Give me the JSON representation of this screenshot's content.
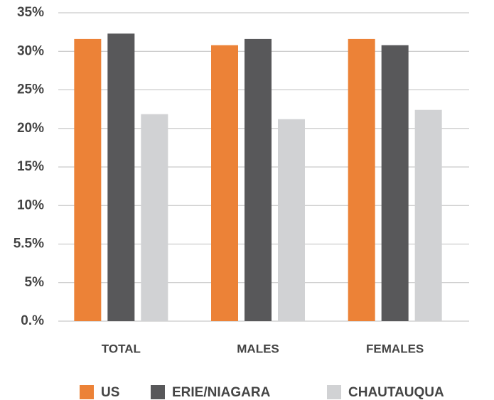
{
  "chart_data": {
    "type": "bar",
    "categories": [
      "TOTAL",
      "MALES",
      "FEMALES"
    ],
    "series": [
      {
        "name": "US",
        "color": "#ec8237",
        "values": [
          31.6,
          30.8,
          31.6
        ]
      },
      {
        "name": "ERIE/NIAGARA",
        "color": "#58585a",
        "values": [
          32.3,
          31.6,
          30.8
        ]
      },
      {
        "name": "CHAUTAUQUA",
        "color": "#d1d2d4",
        "values": [
          21.85,
          21.2,
          22.4
        ]
      }
    ],
    "ylim": [
      0,
      35
    ],
    "yticks": [
      {
        "value": 0,
        "label": "0.%"
      },
      {
        "value": 5,
        "label": "5%"
      },
      {
        "value": 5.5,
        "label": "5.5%"
      },
      {
        "value": 10,
        "label": "10%"
      },
      {
        "value": 15,
        "label": "15%"
      },
      {
        "value": 20,
        "label": "20%"
      },
      {
        "value": 25,
        "label": "25%"
      },
      {
        "value": 30,
        "label": "30%"
      },
      {
        "value": 35,
        "label": "35%"
      }
    ],
    "grid": true,
    "legend": "bottom"
  }
}
